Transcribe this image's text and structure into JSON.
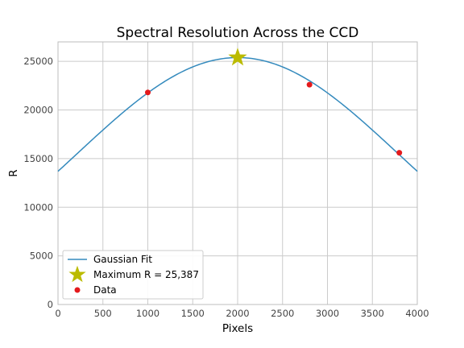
{
  "chart_data": {
    "type": "line",
    "title": "Spectral Resolution Across the CCD",
    "xlabel": "Pixels",
    "ylabel": "R",
    "xlim": [
      0,
      4000
    ],
    "ylim": [
      0,
      27000
    ],
    "xticks": [
      0,
      500,
      1000,
      1500,
      2000,
      2500,
      3000,
      3500,
      4000
    ],
    "yticks": [
      0,
      5000,
      10000,
      15000,
      20000,
      25000
    ],
    "grid": true,
    "legend_placement": "bottom-left",
    "fit": {
      "name": "Gaussian Fit",
      "color": "#348ABD",
      "amplitude": 25387,
      "center": 2000,
      "sigma": 1800
    },
    "maximum": {
      "name": "Maximum R = 25,387",
      "x": 2000,
      "y": 25387,
      "color": "#BBBB00"
    },
    "data": {
      "name": "Data",
      "color": "#E41A1C",
      "x": [
        1000,
        2800,
        3800
      ],
      "y": [
        21800,
        22600,
        15600
      ]
    }
  }
}
